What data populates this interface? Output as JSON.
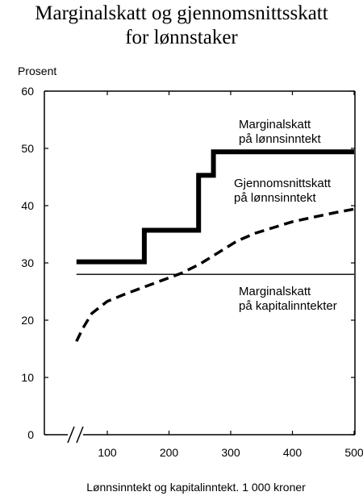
{
  "chart_data": {
    "type": "line",
    "title_line1": "Marginalskatt og gjennomsnittsskatt",
    "title_line2": "for lønnstaker",
    "ylabel": "Prosent",
    "xlabel": "Lønnsinntekt og kapitalinntekt. 1 000 kroner",
    "xlim": [
      0,
      500
    ],
    "ylim": [
      0,
      60
    ],
    "axis_break_x": true,
    "grid": false,
    "xticks": [
      100,
      200,
      300,
      400,
      500
    ],
    "yticks": [
      0,
      10,
      20,
      30,
      40,
      50,
      60
    ],
    "series": [
      {
        "name_lines": [
          "Marginalskatt",
          "på lønnsinntekt"
        ],
        "style": "thick-step",
        "x": [
          50,
          160,
          160,
          248,
          248,
          272,
          272,
          500
        ],
        "y": [
          30.2,
          30.2,
          35.7,
          35.7,
          45.3,
          45.3,
          49.4,
          49.4
        ]
      },
      {
        "name_lines": [
          "Gjennomsnittskatt",
          "på lønnsinntekt"
        ],
        "style": "dashed",
        "x": [
          50,
          60,
          75,
          100,
          130,
          160,
          190,
          220,
          250,
          280,
          310,
          340,
          370,
          400,
          430,
          470,
          500
        ],
        "y": [
          16.3,
          18.5,
          21.2,
          23.3,
          24.6,
          25.8,
          27.0,
          28.2,
          29.8,
          31.8,
          33.8,
          35.2,
          36.2,
          37.2,
          37.9,
          38.8,
          39.4
        ]
      },
      {
        "name_lines": [
          "Marginalskatt",
          "på kapitalinntekter"
        ],
        "style": "thin",
        "x": [
          50,
          500
        ],
        "y": [
          28,
          28
        ]
      }
    ]
  }
}
